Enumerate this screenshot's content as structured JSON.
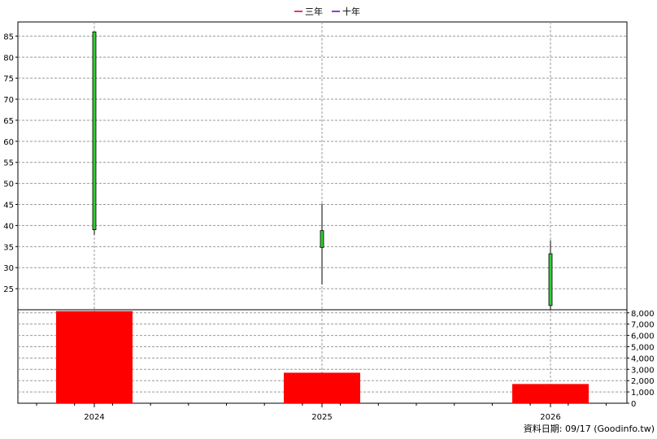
{
  "chart_data": {
    "type": "candlestick+bar",
    "legend": [
      {
        "label": "三年",
        "color": "#cc0033"
      },
      {
        "label": "十年",
        "color": "#6600cc"
      }
    ],
    "categories": [
      "2024",
      "2025",
      "2026"
    ],
    "price": {
      "ylim": [
        20,
        87
      ],
      "yticks": [
        "85",
        "80",
        "75",
        "70",
        "65",
        "60",
        "55",
        "50",
        "45",
        "40",
        "35",
        "30",
        "25"
      ],
      "candles": [
        {
          "year": "2024",
          "open": 39,
          "close": 86,
          "high": 86,
          "low": 37.8
        },
        {
          "year": "2025",
          "open": 34.8,
          "close": 38.8,
          "high": 45.2,
          "low": 26
        },
        {
          "year": "2026",
          "open": 21,
          "close": 33.3,
          "high": 36.5,
          "low": 20
        }
      ],
      "up_color": "#33cc33"
    },
    "volume": {
      "ylim": [
        0,
        8200
      ],
      "yticks": [
        "8,000",
        "7,000",
        "6,000",
        "5,000",
        "4,000",
        "3,000",
        "2,000",
        "1,000",
        "0"
      ],
      "values": [
        8150,
        2700,
        1700
      ],
      "color": "#ff0000"
    },
    "grid": true
  },
  "footer": {
    "text": "資料日期: 09/17  (Goodinfo.tw)"
  }
}
